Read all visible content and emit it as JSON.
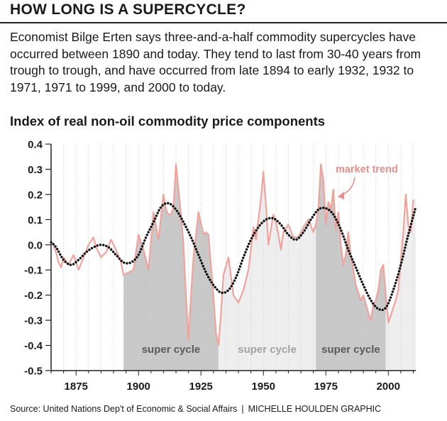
{
  "headline": "HOW LONG IS A SUPERCYCLE?",
  "intro": "Economist Bilge Erten says three-and-a-half commodity supercycles have occurred between 1890 and today. They tend to last from 30-40 years from trough to trough, and have occurred from late 1894 to early 1932, 1932 to 1971, 1971 to 1999, and 2000 to today.",
  "footer": {
    "source": "Source: United Nations Dep't of Economic & Social Affairs",
    "separator": "|",
    "credit": "MICHELLE HOULDEN GRAPHIC"
  },
  "chart_data": {
    "type": "line",
    "title": "Index of real non-oil commodity price components",
    "xlim": [
      1865,
      2011
    ],
    "ylim": [
      -0.5,
      0.4
    ],
    "yticks": [
      0.4,
      0.3,
      0.2,
      0.1,
      0.0,
      -0.1,
      -0.2,
      -0.3,
      -0.4,
      -0.5
    ],
    "ytick_labels": [
      "0.4",
      "0.3",
      "0.2",
      "0.1",
      "0.0",
      "-0.1",
      "-0.2",
      "-0.3",
      "-0.4",
      "-0.5"
    ],
    "xticks": [
      1875,
      1900,
      1925,
      1950,
      1975,
      2000
    ],
    "xtick_labels": [
      "1875",
      "1900",
      "1925",
      "1950",
      "1975",
      "2000"
    ],
    "bands": [
      {
        "label": "super cycle",
        "start": 1894,
        "end": 1932,
        "color": "#c8c8c8",
        "text_color": "#5a5a5a"
      },
      {
        "label": "super cycle",
        "start": 1932,
        "end": 1971,
        "color": "#eeeeee",
        "text_color": "#a3a3a3"
      },
      {
        "label": "super cycle",
        "start": 1971,
        "end": 1999,
        "color": "#c8c8c8",
        "text_color": "#5a5a5a"
      },
      {
        "label": "",
        "start": 1999,
        "end": 2011,
        "color": "#eeeeee",
        "text_color": "#a3a3a3"
      }
    ],
    "annotation": {
      "label": "market trend",
      "color": "#e8908a"
    },
    "colors": {
      "actual": "#f0a39d",
      "trend": "#111111",
      "axis": "#222222"
    },
    "series": [
      {
        "key": "actual",
        "x": [
          1865,
          1866,
          1867,
          1868,
          1869,
          1870,
          1872,
          1874,
          1876,
          1878,
          1880,
          1882,
          1883,
          1885,
          1887,
          1889,
          1891,
          1893,
          1894,
          1896,
          1898,
          1900,
          1902,
          1904,
          1906,
          1908,
          1910,
          1911,
          1912,
          1913,
          1914,
          1915,
          1916,
          1917,
          1918,
          1919,
          1920,
          1921,
          1922,
          1924,
          1926,
          1927,
          1928,
          1930,
          1931,
          1932,
          1933,
          1934,
          1936,
          1938,
          1940,
          1942,
          1944,
          1945,
          1946,
          1947,
          1948,
          1949,
          1950,
          1951,
          1952,
          1953,
          1954,
          1955,
          1956,
          1957,
          1958,
          1960,
          1962,
          1964,
          1966,
          1968,
          1970,
          1971,
          1972,
          1973,
          1974,
          1975,
          1976,
          1977,
          1978,
          1979,
          1980,
          1981,
          1982,
          1983,
          1984,
          1985,
          1986,
          1987,
          1988,
          1989,
          1990,
          1992,
          1993,
          1994,
          1995,
          1996,
          1997,
          1998,
          1999,
          2000,
          2001,
          2002,
          2003,
          2004,
          2006,
          2007,
          2008,
          2009,
          2010
        ],
        "y": [
          0.01,
          0.0,
          -0.03,
          -0.07,
          -0.09,
          -0.05,
          -0.08,
          -0.04,
          -0.1,
          -0.05,
          0.0,
          0.03,
          -0.01,
          -0.05,
          -0.03,
          0.02,
          -0.02,
          -0.07,
          -0.12,
          -0.11,
          -0.1,
          0.04,
          -0.02,
          -0.1,
          0.13,
          0.02,
          0.2,
          0.14,
          0.12,
          0.12,
          0.15,
          0.32,
          0.22,
          0.12,
          0.0,
          -0.2,
          -0.38,
          -0.2,
          -0.05,
          0.13,
          0.04,
          0.05,
          0.04,
          -0.2,
          -0.35,
          -0.4,
          -0.28,
          -0.12,
          -0.05,
          -0.2,
          -0.23,
          -0.18,
          -0.1,
          -0.02,
          0.07,
          0.02,
          0.1,
          0.18,
          0.29,
          0.16,
          0.0,
          0.06,
          0.12,
          0.09,
          0.04,
          -0.02,
          0.05,
          0.08,
          0.03,
          0.03,
          0.07,
          0.1,
          0.05,
          0.08,
          0.14,
          0.32,
          0.26,
          0.08,
          0.17,
          0.14,
          0.22,
          0.06,
          0.13,
          0.0,
          -0.08,
          -0.04,
          0.05,
          -0.05,
          -0.1,
          -0.16,
          -0.19,
          -0.22,
          -0.2,
          -0.27,
          -0.3,
          -0.24,
          -0.22,
          -0.18,
          -0.1,
          -0.08,
          -0.2,
          -0.31,
          -0.28,
          -0.25,
          -0.22,
          -0.18,
          0.05,
          0.2,
          0.08,
          0.05,
          0.18
        ]
      },
      {
        "key": "trend",
        "label": "market trend",
        "x": [
          1865,
          1867,
          1870,
          1873,
          1876,
          1879,
          1882,
          1885,
          1888,
          1891,
          1894,
          1897,
          1900,
          1903,
          1906,
          1909,
          1912,
          1915,
          1918,
          1921,
          1924,
          1927,
          1930,
          1933,
          1936,
          1939,
          1942,
          1945,
          1948,
          1951,
          1954,
          1957,
          1960,
          1963,
          1966,
          1969,
          1972,
          1975,
          1978,
          1981,
          1984,
          1987,
          1990,
          1993,
          1996,
          1999,
          2002,
          2005,
          2008,
          2011
        ],
        "y": [
          0.01,
          -0.01,
          -0.06,
          -0.08,
          -0.06,
          -0.03,
          -0.01,
          0.0,
          -0.01,
          -0.04,
          -0.07,
          -0.07,
          -0.04,
          0.03,
          0.09,
          0.15,
          0.165,
          0.14,
          0.09,
          0.03,
          -0.04,
          -0.11,
          -0.16,
          -0.19,
          -0.18,
          -0.13,
          -0.05,
          0.02,
          0.07,
          0.1,
          0.105,
          0.08,
          0.04,
          0.02,
          0.05,
          0.1,
          0.14,
          0.145,
          0.12,
          0.06,
          -0.02,
          -0.09,
          -0.16,
          -0.22,
          -0.255,
          -0.25,
          -0.18,
          -0.08,
          0.04,
          0.15
        ]
      }
    ]
  }
}
